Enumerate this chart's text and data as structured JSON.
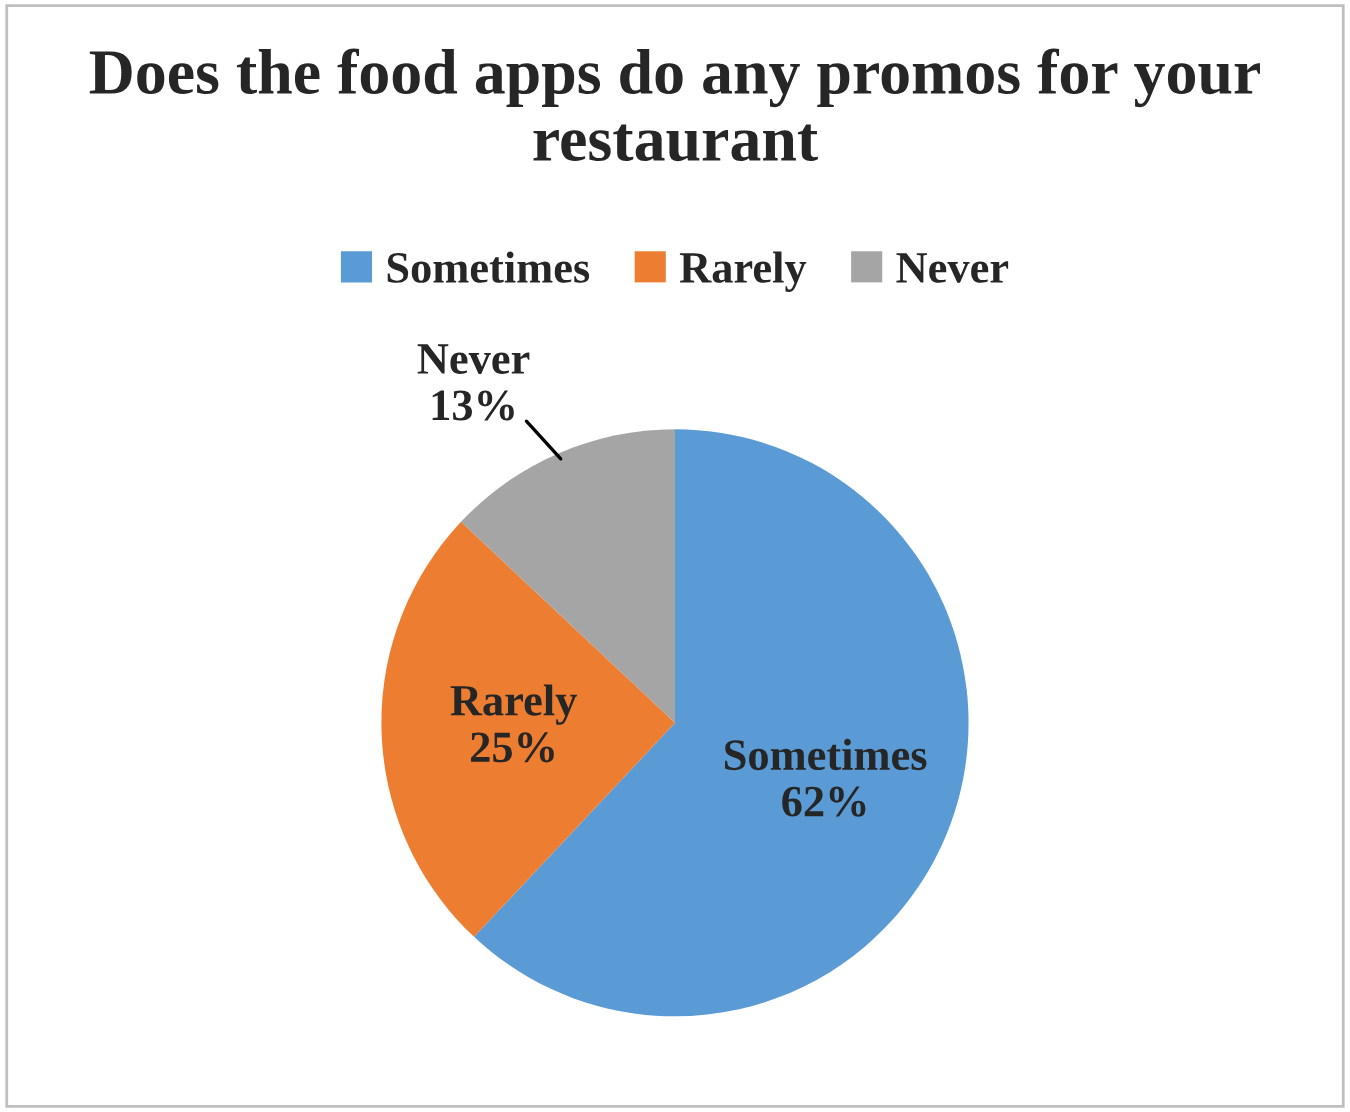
{
  "chart_data": {
    "type": "pie",
    "title": "Does the food apps do any promos for your restaurant",
    "categories": [
      "Sometimes",
      "Rarely",
      "Never"
    ],
    "values": [
      62,
      25,
      13
    ],
    "value_labels": [
      "62%",
      "25%",
      "13%"
    ],
    "colors": [
      "#5b9bd5",
      "#ed7d31",
      "#a5a5a5"
    ],
    "legend": "top"
  }
}
